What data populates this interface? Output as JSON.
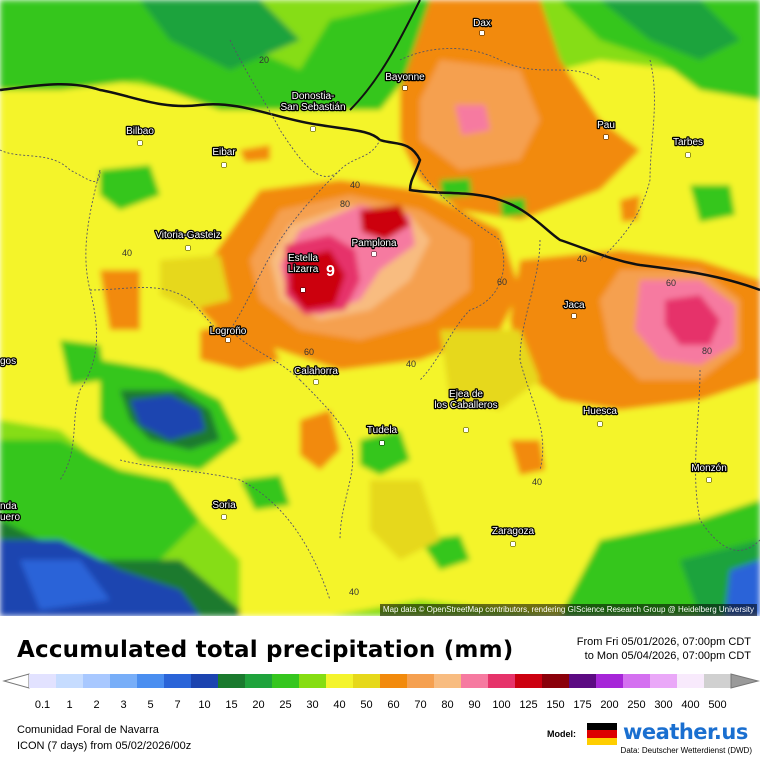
{
  "map": {
    "cities": [
      {
        "name": "Dax"
      },
      {
        "name": "Bayonne"
      },
      {
        "name": "Donostia-\nSan Sebastián"
      },
      {
        "name": "Bilbao"
      },
      {
        "name": "Eibar"
      },
      {
        "name": "Pau"
      },
      {
        "name": "Tarbes"
      },
      {
        "name": "Vitoria-Gasteiz"
      },
      {
        "name": "Pamplona"
      },
      {
        "name": "Estella\nLizarra"
      },
      {
        "name": "Logroño"
      },
      {
        "name": "Jaca"
      },
      {
        "name": "Calahorra"
      },
      {
        "name": "Ejea de\nlos Caballeros"
      },
      {
        "name": "Huesca"
      },
      {
        "name": "Tudela"
      },
      {
        "name": "Monzón"
      },
      {
        "name": "Soria"
      },
      {
        "name": "Zaragoza"
      },
      {
        "name": "gos"
      },
      {
        "name": "nda\nuero"
      }
    ],
    "contour_labels": [
      "20",
      "40",
      "80",
      "40",
      "60",
      "40",
      "60",
      "80",
      "60",
      "40",
      "40",
      "40"
    ],
    "max_marker": "9",
    "attribution": "Map data © OpenStreetMap contributors, rendering GIScience Research Group @ Heidelberg University"
  },
  "header": {
    "title": "Accumulated total precipitation (mm)",
    "period_from": "From Fri 05/01/2026, 07:00pm CDT",
    "period_to": "to Mon 05/04/2026, 07:00pm CDT"
  },
  "scale": {
    "unit": "mm",
    "values": [
      "0.1",
      "1",
      "2",
      "3",
      "5",
      "7",
      "10",
      "15",
      "20",
      "25",
      "30",
      "40",
      "50",
      "60",
      "70",
      "80",
      "90",
      "100",
      "125",
      "150",
      "175",
      "200",
      "250",
      "300",
      "400",
      "500"
    ],
    "colors": [
      "#e2e2ff",
      "#c6dcff",
      "#a8c8ff",
      "#78aef8",
      "#4a8ef0",
      "#2a64d8",
      "#1c44b0",
      "#1a7a2e",
      "#1fa33c",
      "#35c61f",
      "#86dd12",
      "#f4f42c",
      "#e6d81a",
      "#f28a0c",
      "#f5a050",
      "#f8bc80",
      "#f67aa0",
      "#e6336a",
      "#cc0010",
      "#8a000a",
      "#5c0a82",
      "#a626d8",
      "#d470f0",
      "#eaa8f8",
      "#f8eafc",
      "#d0d0d0"
    ]
  },
  "footer": {
    "region": "Comunidad Foral de Navarra",
    "run": "ICON (7 days)  from  05/02/2026/00z",
    "model_label": "Model:",
    "brand": "weather.",
    "brand_suffix": "us",
    "credit": "Data: Deutscher Wetterdienst (DWD)"
  }
}
